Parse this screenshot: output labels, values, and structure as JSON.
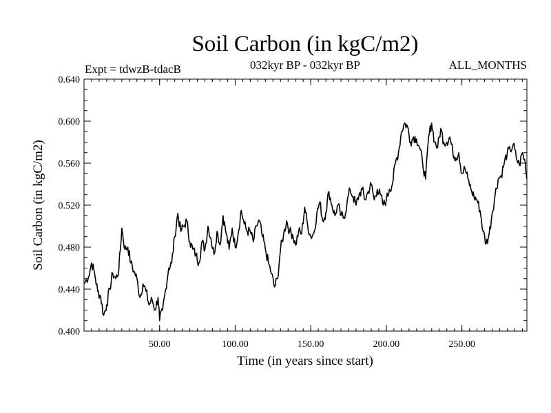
{
  "chart_data": {
    "type": "line",
    "title": "Soil Carbon (in kgC/m2)",
    "left_header": "Expt = tdwzB-tdacB",
    "center_header": "032kyr BP - 032kyr BP",
    "right_header": "ALL_MONTHS",
    "xlabel": "Time (in years since start)",
    "ylabel": "Soil Carbon (in kgC/m2)",
    "xlim": [
      0,
      293
    ],
    "ylim": [
      0.4,
      0.64
    ],
    "xticks": [
      50,
      100,
      150,
      200,
      250
    ],
    "xtick_labels": [
      "50.00",
      "100.00",
      "150.00",
      "200.00",
      "250.00"
    ],
    "yticks": [
      0.4,
      0.44,
      0.48,
      0.52,
      0.56,
      0.6,
      0.64
    ],
    "ytick_labels": [
      "0.400",
      "0.440",
      "0.480",
      "0.520",
      "0.560",
      "0.600",
      "0.640"
    ],
    "x_minor_step": 5,
    "y_minor_step": 0.01,
    "series": [
      {
        "name": "Soil Carbon",
        "x": [
          0,
          3,
          5,
          7,
          9,
          11,
          13,
          15,
          17,
          19,
          21,
          23,
          25,
          27,
          29,
          31,
          33,
          35,
          37,
          39,
          41,
          43,
          45,
          47,
          49,
          50,
          52,
          54,
          56,
          58,
          60,
          62,
          64,
          66,
          68,
          70,
          72,
          74,
          76,
          78,
          80,
          82,
          84,
          86,
          88,
          90,
          92,
          94,
          96,
          98,
          100,
          102,
          104,
          106,
          108,
          110,
          112,
          114,
          116,
          118,
          120,
          122,
          124,
          126,
          128,
          130,
          132,
          134,
          136,
          138,
          140,
          142,
          144,
          146,
          148,
          150,
          152,
          154,
          156,
          158,
          160,
          162,
          164,
          166,
          168,
          170,
          172,
          174,
          176,
          178,
          180,
          182,
          184,
          186,
          188,
          190,
          192,
          194,
          196,
          198,
          200,
          202,
          204,
          206,
          208,
          210,
          212,
          214,
          216,
          218,
          220,
          222,
          224,
          226,
          228,
          230,
          232,
          234,
          236,
          238,
          240,
          242,
          244,
          246,
          248,
          250,
          252,
          254,
          256,
          258,
          260,
          262,
          264,
          266,
          268,
          270,
          272,
          274,
          276,
          278,
          280,
          282,
          284,
          286,
          288,
          290,
          292,
          293
        ],
        "values": [
          0.445,
          0.452,
          0.465,
          0.455,
          0.438,
          0.433,
          0.415,
          0.425,
          0.44,
          0.455,
          0.45,
          0.458,
          0.498,
          0.478,
          0.48,
          0.465,
          0.457,
          0.45,
          0.432,
          0.445,
          0.438,
          0.425,
          0.43,
          0.42,
          0.432,
          0.41,
          0.42,
          0.44,
          0.46,
          0.465,
          0.49,
          0.512,
          0.495,
          0.5,
          0.505,
          0.485,
          0.478,
          0.473,
          0.465,
          0.485,
          0.478,
          0.5,
          0.488,
          0.473,
          0.495,
          0.482,
          0.51,
          0.493,
          0.478,
          0.498,
          0.48,
          0.493,
          0.515,
          0.502,
          0.495,
          0.495,
          0.485,
          0.5,
          0.505,
          0.49,
          0.478,
          0.465,
          0.455,
          0.442,
          0.45,
          0.478,
          0.492,
          0.505,
          0.495,
          0.492,
          0.482,
          0.495,
          0.493,
          0.518,
          0.5,
          0.49,
          0.493,
          0.512,
          0.523,
          0.505,
          0.513,
          0.533,
          0.52,
          0.51,
          0.52,
          0.51,
          0.508,
          0.522,
          0.535,
          0.528,
          0.52,
          0.53,
          0.535,
          0.525,
          0.533,
          0.54,
          0.525,
          0.535,
          0.53,
          0.52,
          0.525,
          0.535,
          0.54,
          0.56,
          0.57,
          0.59,
          0.598,
          0.595,
          0.58,
          0.585,
          0.583,
          0.575,
          0.56,
          0.545,
          0.585,
          0.598,
          0.58,
          0.575,
          0.593,
          0.58,
          0.58,
          0.585,
          0.57,
          0.565,
          0.57,
          0.55,
          0.555,
          0.545,
          0.535,
          0.528,
          0.525,
          0.515,
          0.495,
          0.483,
          0.492,
          0.512,
          0.53,
          0.545,
          0.548,
          0.56,
          0.57,
          0.572,
          0.578,
          0.565,
          0.558,
          0.57,
          0.56,
          0.545
        ]
      }
    ]
  },
  "colors": {
    "line": "#000000",
    "background": "#ffffff",
    "axis": "#000000"
  }
}
